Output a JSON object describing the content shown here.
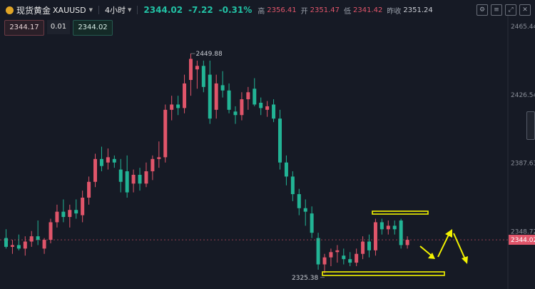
{
  "header": {
    "title": "现货黄金",
    "symbol": "XAUUSD",
    "interval": "4小时",
    "last": "2344.02",
    "change": "-7.22",
    "change_pct": "-0.31%",
    "high_label": "高",
    "high": "2356.41",
    "open_label": "开",
    "open": "2351.47",
    "low_label": "低",
    "low": "2341.42",
    "prevclose_label": "昨收",
    "prevclose": "2351.24"
  },
  "order": {
    "bid": "2344.17",
    "qty": "0.01",
    "ask": "2344.02"
  },
  "toolbar_icons": [
    "chart-settings-icon",
    "indicators-icon",
    "fullscreen-icon",
    "close-icon"
  ],
  "chart_data": {
    "type": "candlestick",
    "y_ticks": [
      "2465.44",
      "2426.54",
      "2387.63",
      "2348.72"
    ],
    "current_price": "2344.02",
    "high_label": "2449.88",
    "low_label": "2325.38",
    "up_color": "#e0556a",
    "down_color": "#22b495",
    "ylim": [
      2316,
      2474
    ],
    "candles": [
      [
        2345,
        2350,
        2339,
        2340
      ],
      [
        2340,
        2344,
        2336,
        2341
      ],
      [
        2341,
        2347,
        2338,
        2339
      ],
      [
        2339,
        2346,
        2335,
        2343
      ],
      [
        2343,
        2349,
        2340,
        2346
      ],
      [
        2346,
        2355,
        2341,
        2344
      ],
      [
        2339,
        2345,
        2336,
        2344
      ],
      [
        2344,
        2356,
        2342,
        2354
      ],
      [
        2354,
        2364,
        2351,
        2360
      ],
      [
        2360,
        2367,
        2354,
        2357
      ],
      [
        2357,
        2364,
        2351,
        2361
      ],
      [
        2361,
        2367,
        2356,
        2359
      ],
      [
        2358,
        2372,
        2354,
        2368
      ],
      [
        2368,
        2380,
        2364,
        2377
      ],
      [
        2377,
        2393,
        2374,
        2390
      ],
      [
        2390,
        2397,
        2383,
        2386
      ],
      [
        2388,
        2396,
        2384,
        2391
      ],
      [
        2390,
        2392,
        2385,
        2388
      ],
      [
        2384,
        2390,
        2371,
        2377
      ],
      [
        2383,
        2392,
        2368,
        2371
      ],
      [
        2376,
        2384,
        2371,
        2381
      ],
      [
        2381,
        2385,
        2372,
        2376
      ],
      [
        2376,
        2388,
        2374,
        2383
      ],
      [
        2383,
        2392,
        2378,
        2390
      ],
      [
        2390,
        2400,
        2385,
        2391
      ],
      [
        2391,
        2421,
        2388,
        2418
      ],
      [
        2418,
        2426,
        2412,
        2421
      ],
      [
        2421,
        2426,
        2415,
        2419
      ],
      [
        2419,
        2438,
        2416,
        2433
      ],
      [
        2435,
        2450,
        2426,
        2447
      ],
      [
        2441,
        2446,
        2430,
        2443
      ],
      [
        2443,
        2446,
        2428,
        2431
      ],
      [
        2438,
        2446,
        2410,
        2413
      ],
      [
        2418,
        2438,
        2413,
        2433
      ],
      [
        2432,
        2440,
        2425,
        2429
      ],
      [
        2429,
        2433,
        2416,
        2418
      ],
      [
        2417,
        2420,
        2410,
        2415
      ],
      [
        2415,
        2428,
        2412,
        2424
      ],
      [
        2424,
        2431,
        2418,
        2428
      ],
      [
        2430,
        2436,
        2420,
        2421
      ],
      [
        2422,
        2425,
        2415,
        2419
      ],
      [
        2418,
        2423,
        2414,
        2420
      ],
      [
        2421,
        2424,
        2411,
        2413
      ],
      [
        2413,
        2418,
        2384,
        2388
      ],
      [
        2388,
        2392,
        2375,
        2380
      ],
      [
        2380,
        2383,
        2366,
        2370
      ],
      [
        2370,
        2373,
        2358,
        2362
      ],
      [
        2362,
        2367,
        2352,
        2360
      ],
      [
        2359,
        2363,
        2345,
        2348
      ],
      [
        2345,
        2348,
        2327,
        2330
      ],
      [
        2330,
        2336,
        2325,
        2334
      ],
      [
        2334,
        2339,
        2329,
        2337
      ],
      [
        2337,
        2341,
        2331,
        2338
      ],
      [
        2335,
        2339,
        2330,
        2333
      ],
      [
        2333,
        2337,
        2329,
        2331
      ],
      [
        2331,
        2339,
        2329,
        2336
      ],
      [
        2336,
        2346,
        2333,
        2343
      ],
      [
        2343,
        2347,
        2334,
        2338
      ],
      [
        2338,
        2356,
        2335,
        2354
      ],
      [
        2354,
        2356,
        2347,
        2350
      ],
      [
        2350,
        2355,
        2347,
        2352
      ],
      [
        2352,
        2355,
        2347,
        2350
      ],
      [
        2355,
        2356,
        2339,
        2341
      ],
      [
        2341,
        2346,
        2339,
        2344
      ]
    ]
  },
  "annotations": {
    "resistance_color": "#f3f300",
    "arrow_color": "#f3f300"
  }
}
